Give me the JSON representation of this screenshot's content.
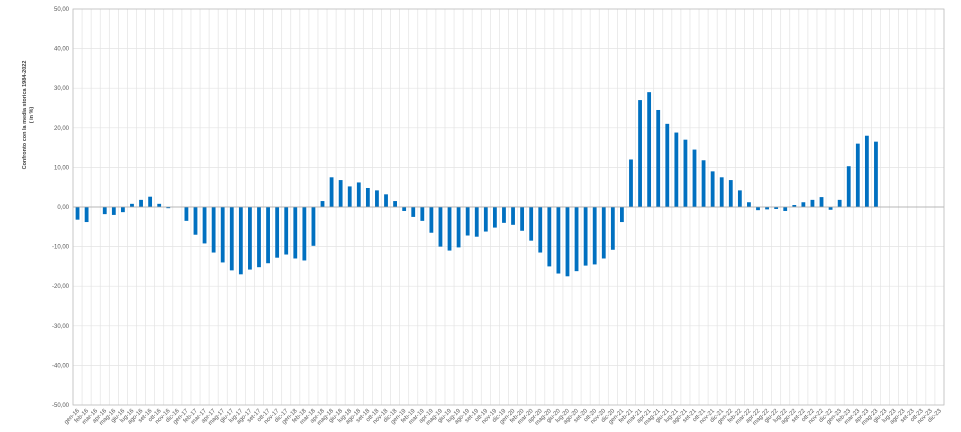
{
  "chart_data": {
    "type": "bar",
    "title": "",
    "ylabel": "Confronto con la media storica 1984-2022",
    "ylabel_unit": "( in %)",
    "xlabel": "",
    "ylim": [
      -50,
      50
    ],
    "ytick_step": 10,
    "grid": true,
    "legend": "none",
    "bar_color": "#0070C0",
    "categories": [
      "gen-16",
      "feb-16",
      "mar-16",
      "apr-16",
      "mag-16",
      "giu-16",
      "lug-16",
      "ago-16",
      "set-16",
      "ott-16",
      "nov-16",
      "dic-16",
      "gen-17",
      "feb-17",
      "mar-17",
      "apr-17",
      "mag-17",
      "giu-17",
      "lug-17",
      "ago-17",
      "set-17",
      "ott-17",
      "nov-17",
      "dic-17",
      "gen-18",
      "feb-18",
      "mar-18",
      "apr-18",
      "mag-18",
      "giu-18",
      "lug-18",
      "ago-18",
      "set-18",
      "ott-18",
      "nov-18",
      "dic-18",
      "gen-19",
      "feb-19",
      "mar-19",
      "apr-19",
      "mag-19",
      "giu-19",
      "lug-19",
      "ago-19",
      "set-19",
      "ott-19",
      "nov-19",
      "dic-19",
      "gen-20",
      "feb-20",
      "mar-20",
      "apr-20",
      "mag-20",
      "giu-20",
      "lug-20",
      "ago-20",
      "set-20",
      "ott-20",
      "nov-20",
      "dic-20",
      "gen-21",
      "feb-21",
      "mar-21",
      "apr-21",
      "mag-21",
      "giu-21",
      "lug-21",
      "ago-21",
      "set-21",
      "ott-21",
      "nov-21",
      "dic-21",
      "gen-22",
      "feb-22",
      "mar-22",
      "apr-22",
      "mag-22",
      "giu-22",
      "lug-22",
      "ago-22",
      "set-22",
      "ott-22",
      "nov-22",
      "dic-22",
      "gen-23",
      "feb-23",
      "mar-23",
      "apr-23",
      "mag-23",
      "giu-23",
      "lug-23",
      "ago-23",
      "set-23",
      "ott-23",
      "nov-23",
      "dic-23"
    ],
    "values": [
      -3.2,
      -3.8,
      null,
      -1.8,
      -2.0,
      -1.3,
      0.8,
      1.8,
      2.6,
      0.8,
      -0.3,
      null,
      -3.5,
      -7.0,
      -9.2,
      -11.5,
      -14.0,
      -16.0,
      -17.0,
      -15.8,
      -15.2,
      -14.2,
      -12.8,
      -12.0,
      -13.0,
      -13.5,
      -9.8,
      1.5,
      7.5,
      6.8,
      5.2,
      6.2,
      4.8,
      4.2,
      3.2,
      1.5,
      -1.0,
      -2.5,
      -3.5,
      -6.5,
      -10.0,
      -11.0,
      -10.2,
      -7.2,
      -7.5,
      -6.2,
      -5.2,
      -4.0,
      -4.5,
      -6.0,
      -8.5,
      -11.5,
      -15.0,
      -16.8,
      -17.5,
      -16.2,
      -14.8,
      -14.5,
      -13.0,
      -10.8,
      -3.8,
      12.0,
      27.0,
      29.0,
      24.5,
      21.0,
      18.8,
      17.0,
      14.5,
      11.8,
      9.0,
      7.5,
      6.8,
      4.2,
      1.2,
      -0.8,
      -0.6,
      -0.5,
      -1.0,
      0.5,
      1.2,
      1.8,
      2.5,
      -0.7,
      1.8,
      10.3,
      16.0,
      18.0,
      16.5,
      null,
      null,
      null,
      null,
      null,
      null,
      null
    ]
  }
}
